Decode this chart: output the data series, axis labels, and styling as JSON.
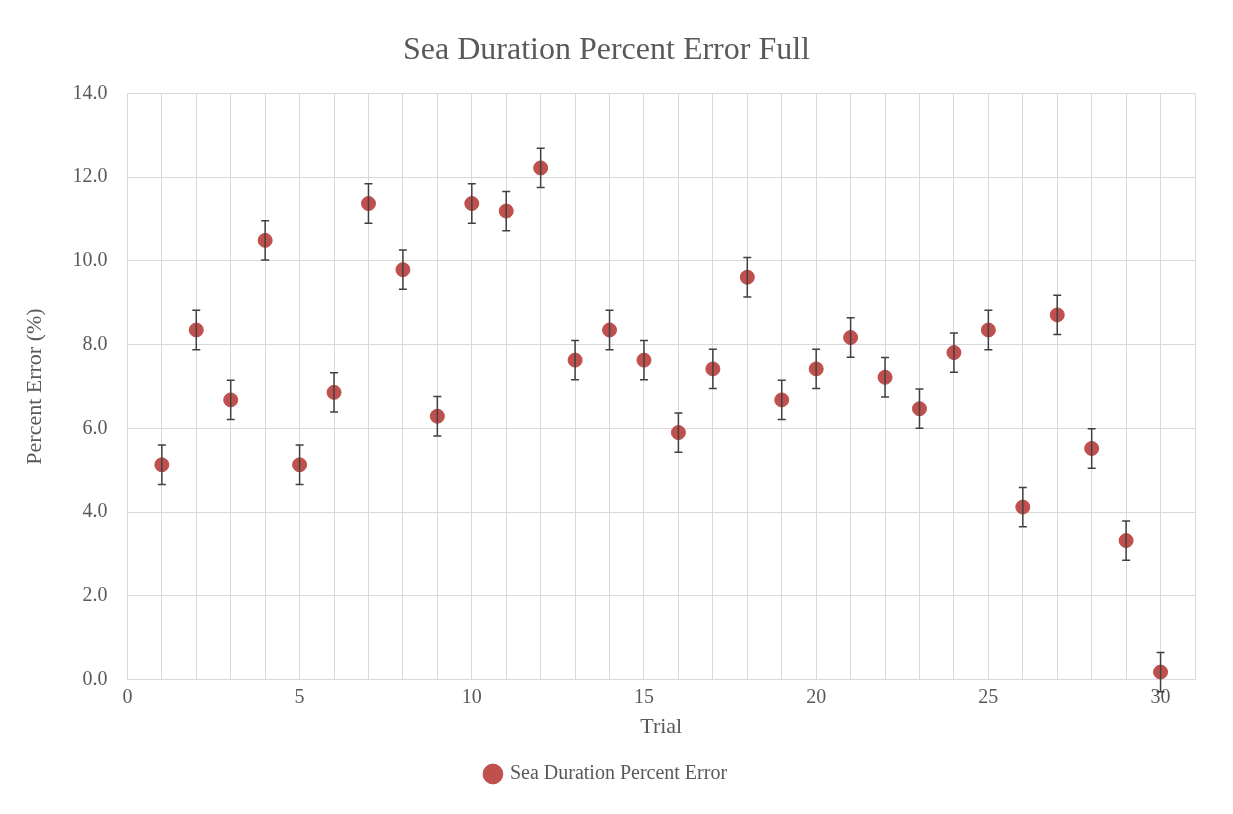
{
  "chart_data": {
    "type": "scatter",
    "title": "Sea Duration Percent Error Full",
    "xlabel": "Trial",
    "ylabel": "Percent Error (%)",
    "x": [
      1,
      2,
      3,
      4,
      5,
      6,
      7,
      8,
      9,
      10,
      11,
      12,
      13,
      14,
      15,
      16,
      17,
      18,
      19,
      20,
      21,
      22,
      23,
      24,
      25,
      26,
      27,
      28,
      29,
      30
    ],
    "series": [
      {
        "name": "Sea Duration Percent Error",
        "color": "#c0504d",
        "values": [
          5.13,
          8.35,
          6.68,
          10.49,
          5.13,
          6.86,
          11.37,
          9.79,
          6.29,
          11.37,
          11.19,
          12.22,
          7.63,
          8.35,
          7.63,
          5.9,
          7.42,
          9.61,
          6.68,
          7.42,
          8.17,
          7.22,
          6.47,
          7.81,
          8.35,
          4.12,
          8.71,
          5.52,
          3.32,
          0.18
        ],
        "errors": [
          0.47,
          0.47,
          0.47,
          0.47,
          0.47,
          0.47,
          0.47,
          0.47,
          0.47,
          0.47,
          0.47,
          0.47,
          0.47,
          0.47,
          0.47,
          0.47,
          0.47,
          0.47,
          0.47,
          0.47,
          0.47,
          0.47,
          0.47,
          0.47,
          0.47,
          0.47,
          0.47,
          0.47,
          0.47,
          0.47
        ]
      }
    ],
    "xlim": [
      0,
      31
    ],
    "xticks": [
      0,
      {
        "value": 1,
        "label": null
      },
      {
        "value": 2,
        "label": null
      },
      {
        "value": 3,
        "label": null
      },
      {
        "value": 4,
        "label": null
      },
      5,
      {
        "value": 6,
        "label": null
      },
      {
        "value": 7,
        "label": null
      },
      {
        "value": 8,
        "label": null
      },
      {
        "value": 9,
        "label": null
      },
      10,
      {
        "value": 11,
        "label": null
      },
      {
        "value": 12,
        "label": null
      },
      {
        "value": 13,
        "label": null
      },
      {
        "value": 14,
        "label": null
      },
      15,
      {
        "value": 16,
        "label": null
      },
      {
        "value": 17,
        "label": null
      },
      {
        "value": 18,
        "label": null
      },
      {
        "value": 19,
        "label": null
      },
      20,
      {
        "value": 21,
        "label": null
      },
      {
        "value": 22,
        "label": null
      },
      {
        "value": 23,
        "label": null
      },
      {
        "value": 24,
        "label": null
      },
      25,
      {
        "value": 26,
        "label": null
      },
      {
        "value": 27,
        "label": null
      },
      {
        "value": 28,
        "label": null
      },
      {
        "value": 29,
        "label": null
      },
      30,
      {
        "value": 31,
        "label": null
      }
    ],
    "ylim": [
      0,
      14
    ],
    "yticks": [
      {
        "value": 0,
        "label": "0.0"
      },
      {
        "value": 2,
        "label": "2.0"
      },
      {
        "value": 4,
        "label": "4.0"
      },
      {
        "value": 6,
        "label": "6.0"
      },
      {
        "value": 8,
        "label": "8.0"
      },
      {
        "value": 10,
        "label": "10.0"
      },
      {
        "value": 12,
        "label": "12.0"
      },
      {
        "value": 14,
        "label": "14.0"
      }
    ],
    "grid": true,
    "legend": "bottom",
    "marker": "circle"
  }
}
